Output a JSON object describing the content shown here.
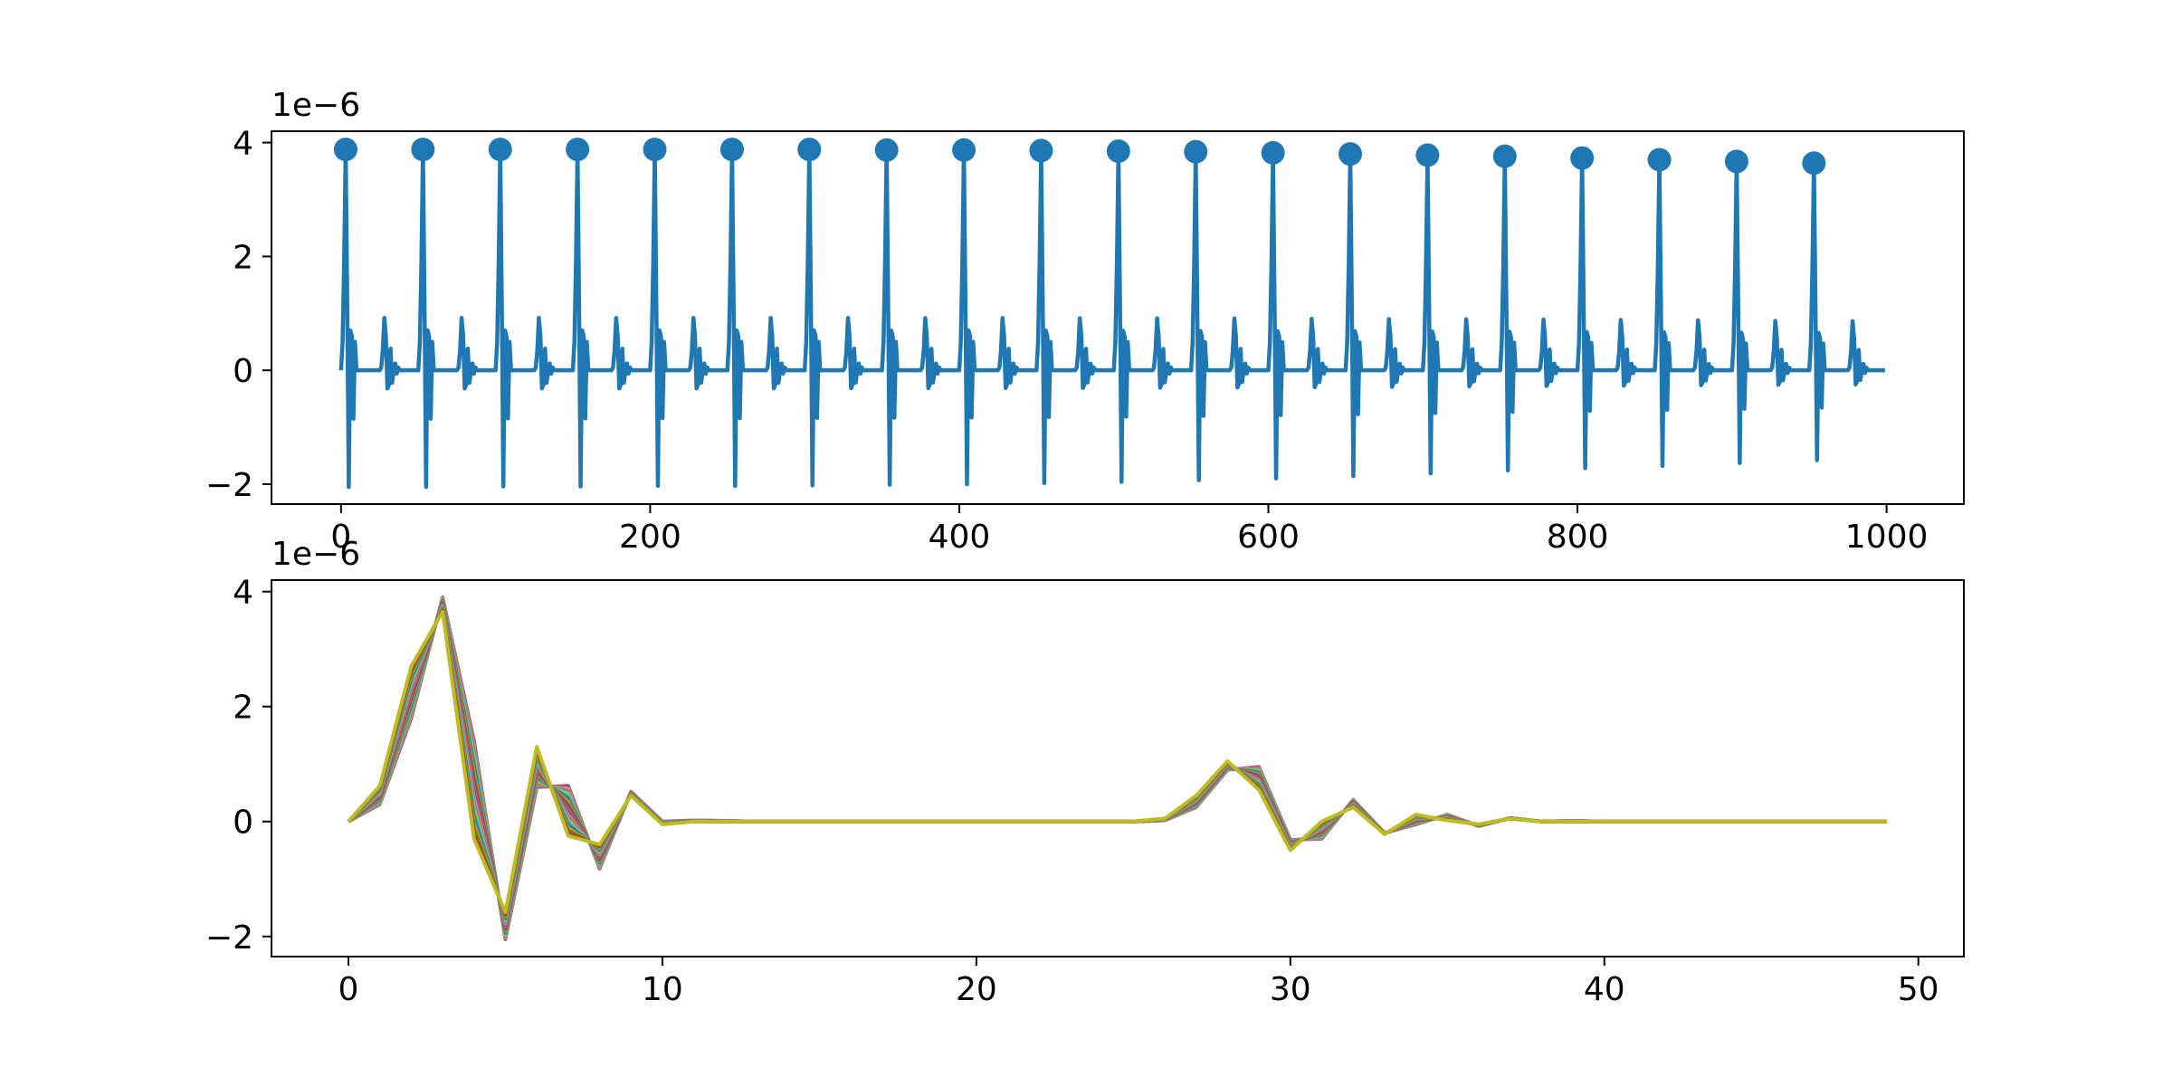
{
  "chart_data": [
    {
      "type": "line",
      "title": "",
      "xlabel": "",
      "ylabel": "",
      "xlim": [
        -45,
        1050
      ],
      "ylim": [
        -2.35,
        4.2
      ],
      "y_offset_label": "1e−6",
      "xticks": [
        0,
        200,
        400,
        600,
        800,
        1000
      ],
      "yticks": [
        -2,
        0,
        2,
        4
      ],
      "xtick_labels": [
        "0",
        "200",
        "400",
        "600",
        "800",
        "1000"
      ],
      "ytick_labels": [
        "−2",
        "0",
        "2",
        "4"
      ],
      "series_color": "#1f77b4",
      "grid": false,
      "series": [
        {
          "period": 50,
          "n_points": 1000,
          "start_x": 3,
          "peaks": [
            3.88,
            3.88,
            3.88,
            3.88,
            3.88,
            3.88,
            3.88,
            3.87,
            3.87,
            3.86,
            3.85,
            3.84,
            3.82,
            3.8,
            3.78,
            3.76,
            3.73,
            3.7,
            3.67,
            3.64
          ],
          "troughs": [
            -2.05,
            -2.05,
            -2.04,
            -2.04,
            -2.03,
            -2.03,
            -2.02,
            -2.01,
            -2.0,
            -1.98,
            -1.96,
            -1.93,
            -1.9,
            -1.86,
            -1.81,
            -1.76,
            -1.72,
            -1.68,
            -1.63,
            -1.58
          ],
          "cycle_shape": [
            0.0,
            0.5,
            1.9,
            3.88,
            1.2,
            -2.05,
            0.7,
            0.6,
            -0.85,
            0.5,
            0.0,
            0.0,
            0.0,
            0.0,
            0.0,
            0.0,
            0.0,
            0.0,
            0.0,
            0.0,
            0.0,
            0.0,
            0.0,
            0.0,
            0.0,
            0.0,
            0.05,
            0.35,
            0.92,
            0.6,
            -0.32,
            -0.25,
            0.38,
            -0.22,
            -0.02,
            0.12,
            -0.06,
            0.05,
            0.0,
            0.0,
            0.0,
            0.0,
            0.0,
            0.0,
            0.0,
            0.0,
            0.0,
            0.0,
            0.0,
            0.0
          ]
        }
      ],
      "markers": {
        "shape": "circle",
        "x": [
          3,
          53,
          103,
          153,
          203,
          253,
          303,
          353,
          403,
          453,
          503,
          553,
          603,
          653,
          703,
          753,
          803,
          853,
          903,
          953
        ],
        "y": [
          3.88,
          3.88,
          3.88,
          3.88,
          3.88,
          3.88,
          3.88,
          3.87,
          3.87,
          3.86,
          3.85,
          3.84,
          3.82,
          3.8,
          3.78,
          3.76,
          3.73,
          3.7,
          3.67,
          3.64
        ]
      }
    },
    {
      "type": "line",
      "title": "",
      "xlabel": "",
      "ylabel": "",
      "xlim": [
        -2.45,
        51.45
      ],
      "ylim": [
        -2.35,
        4.2
      ],
      "y_offset_label": "1e−6",
      "xticks": [
        0,
        10,
        20,
        30,
        40,
        50
      ],
      "yticks": [
        -2,
        0,
        2,
        4
      ],
      "xtick_labels": [
        "0",
        "10",
        "20",
        "30",
        "40",
        "50"
      ],
      "ytick_labels": [
        "−2",
        "0",
        "2",
        "4"
      ],
      "grid": false,
      "x": [
        0,
        1,
        2,
        3,
        4,
        5,
        6,
        7,
        8,
        9,
        10,
        11,
        12,
        13,
        14,
        15,
        16,
        17,
        18,
        19,
        20,
        21,
        22,
        23,
        24,
        25,
        26,
        27,
        28,
        29,
        30,
        31,
        32,
        33,
        34,
        35,
        36,
        37,
        38,
        39,
        40,
        41,
        42,
        43,
        44,
        45,
        46,
        47,
        48,
        49
      ],
      "first_cycle": [
        0.0,
        0.3,
        1.8,
        3.9,
        1.4,
        -2.05,
        0.6,
        0.62,
        -0.82,
        0.52,
        0.0,
        0.02,
        0.01,
        0.0,
        0.0,
        0.0,
        0.0,
        0.0,
        0.0,
        0.0,
        0.0,
        0.0,
        0.0,
        0.0,
        0.0,
        0.0,
        0.02,
        0.25,
        0.9,
        0.95,
        -0.32,
        -0.3,
        0.38,
        -0.2,
        -0.05,
        0.12,
        -0.08,
        0.06,
        0.0,
        0.01,
        0.0,
        0.0,
        0.0,
        0.0,
        0.0,
        0.0,
        0.0,
        0.0,
        0.0,
        0.0
      ],
      "last_cycle": [
        0.0,
        0.62,
        2.7,
        3.65,
        -0.3,
        -1.58,
        1.3,
        -0.25,
        -0.4,
        0.45,
        -0.05,
        0.0,
        0.0,
        0.0,
        0.0,
        0.0,
        0.0,
        0.0,
        0.0,
        0.0,
        0.0,
        0.0,
        0.0,
        0.0,
        0.0,
        0.0,
        0.05,
        0.45,
        1.05,
        0.55,
        -0.5,
        0.0,
        0.25,
        -0.22,
        0.12,
        0.02,
        -0.05,
        0.05,
        0.0,
        0.0,
        0.0,
        0.0,
        0.0,
        0.0,
        0.0,
        0.0,
        0.0,
        0.0,
        0.0,
        0.0
      ],
      "overlay_count": 20,
      "colors": [
        "#8c564b",
        "#e377c2",
        "#7f7f7f",
        "#bcbd22",
        "#17becf",
        "#1f77b4",
        "#ff7f0e",
        "#2ca02c",
        "#d62728",
        "#9467bd",
        "#8c564b",
        "#e377c2",
        "#7f7f7f",
        "#bcbd22",
        "#17becf",
        "#1f77b4",
        "#ff7f0e",
        "#2ca02c",
        "#d62728",
        "#bcbd22"
      ]
    }
  ]
}
